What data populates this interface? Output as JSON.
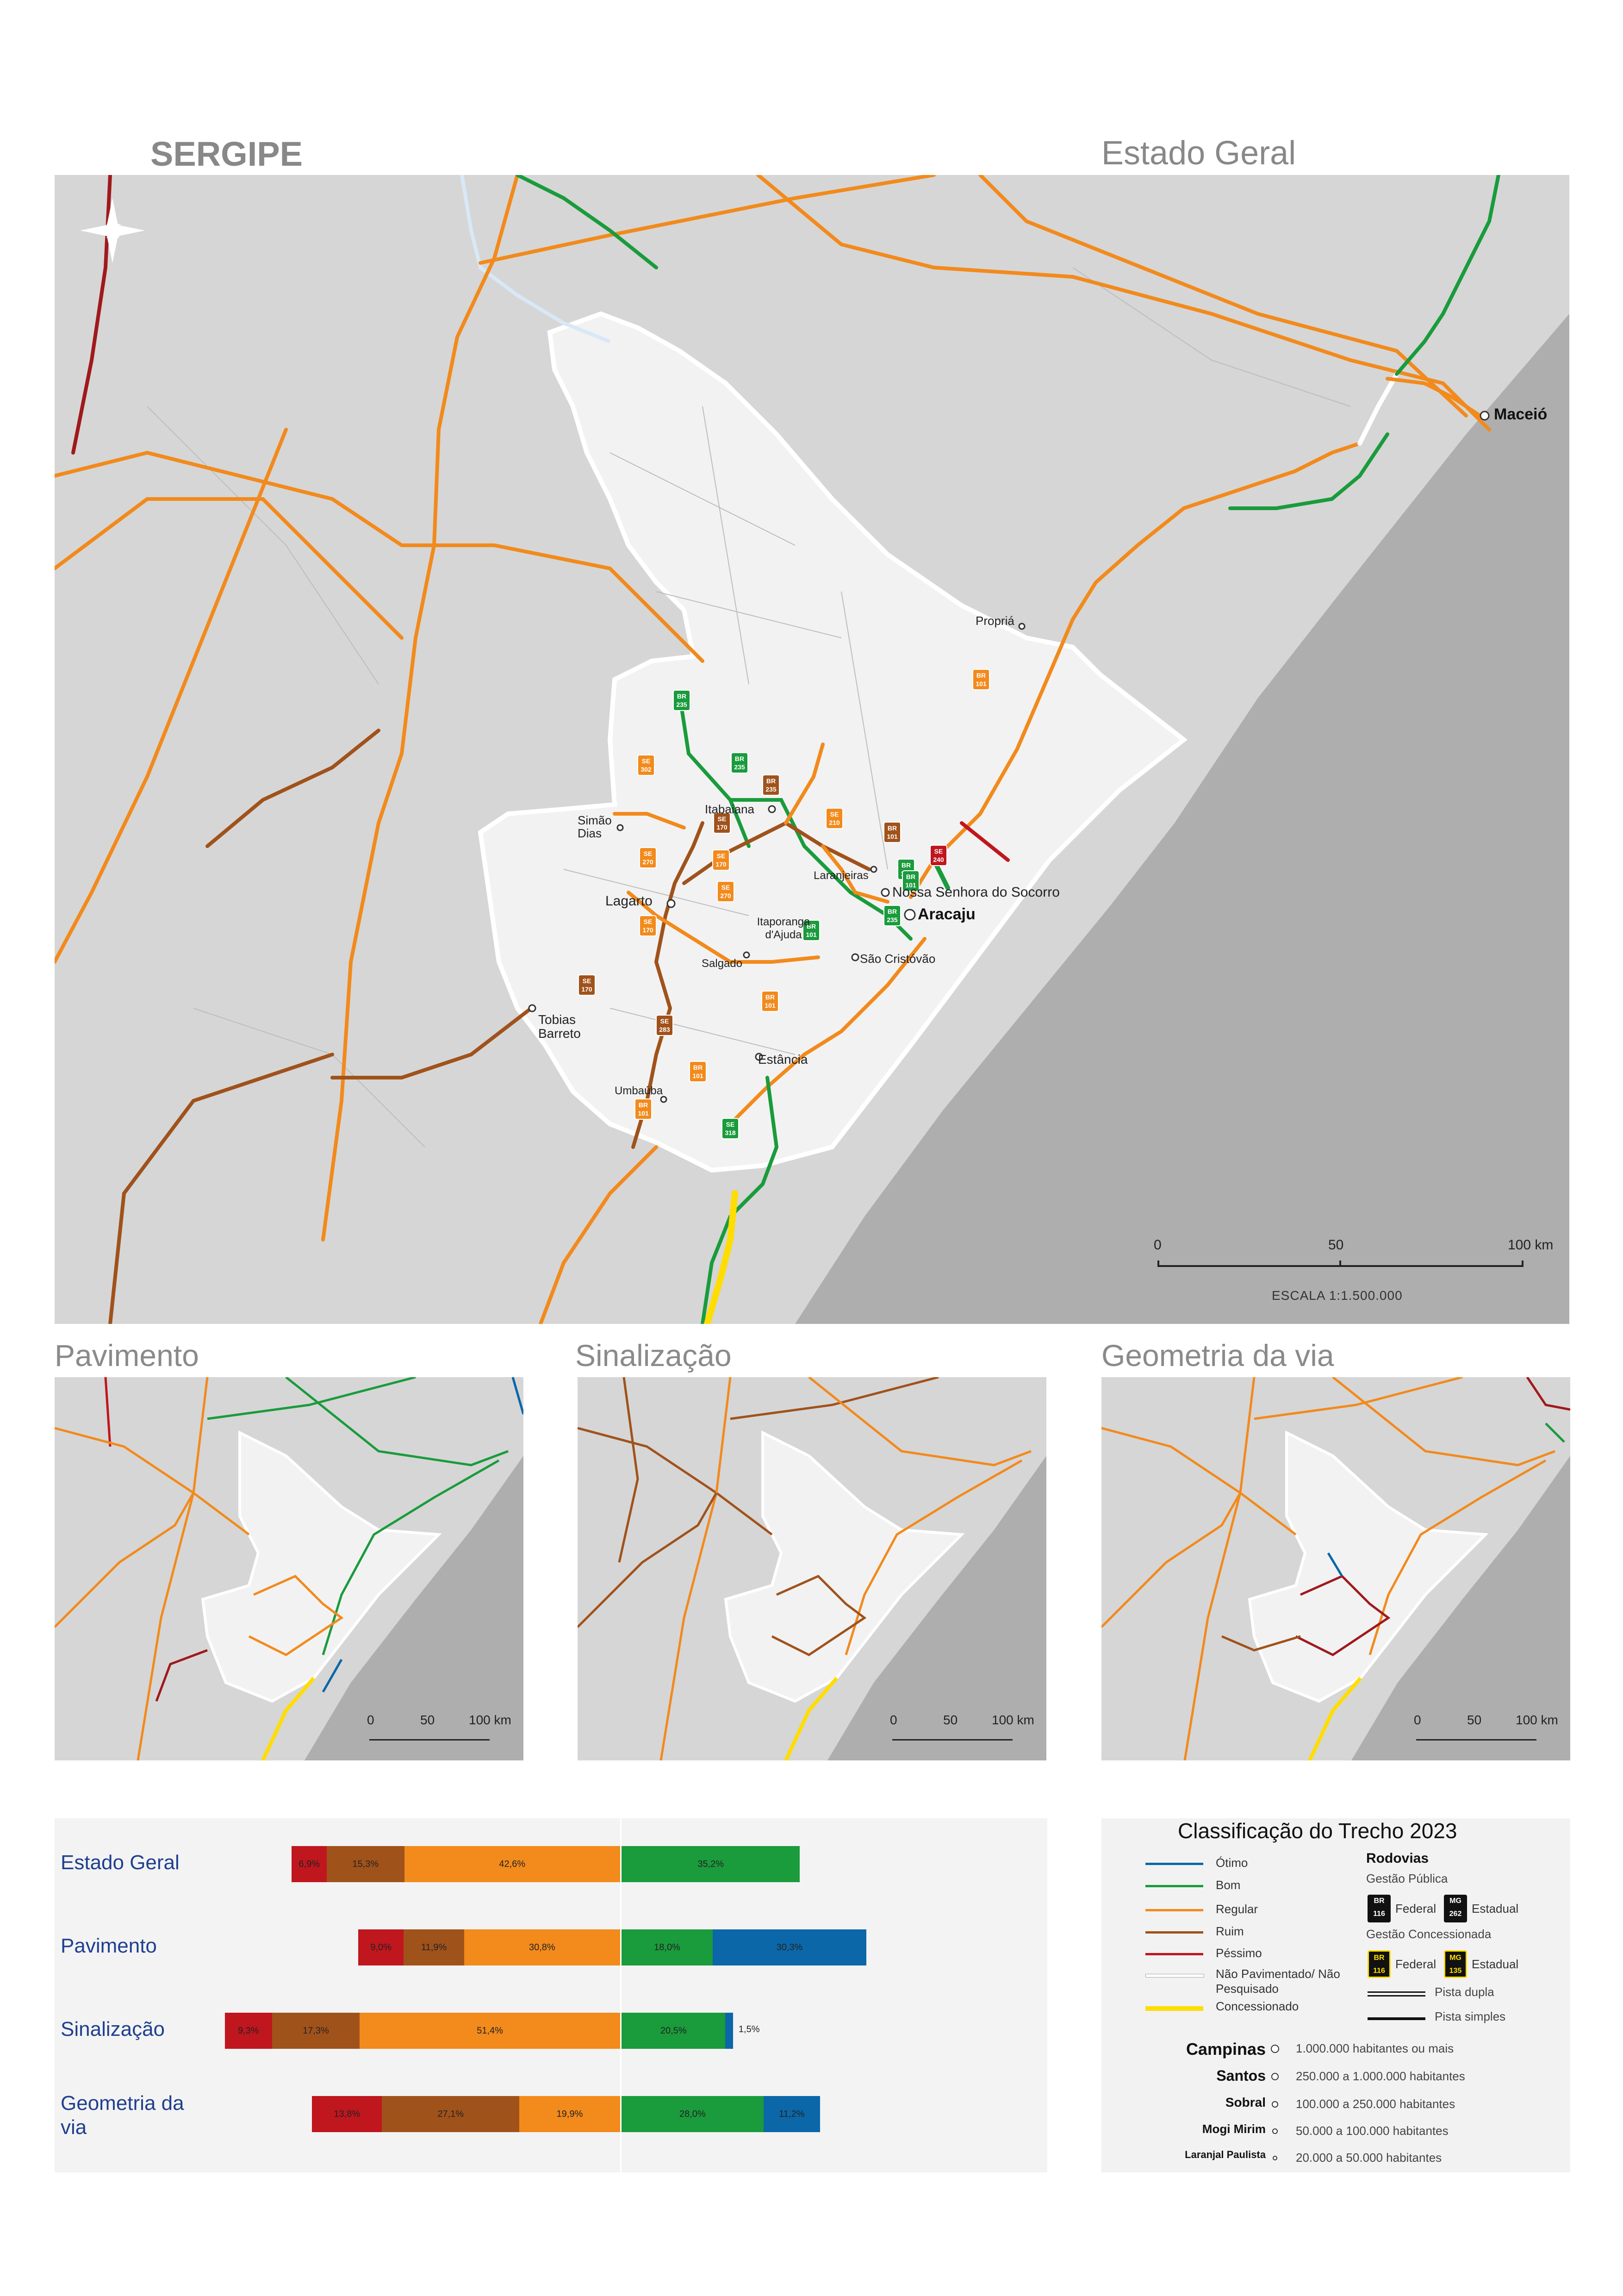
{
  "header": {
    "state": "SERGIPE",
    "main_title": "Estado Geral"
  },
  "main_map": {
    "places": {
      "maceio": "Maceió",
      "propria": "Propriá",
      "itabaiana": "Itabaiana",
      "simao_dias": "Simão Dias",
      "lagarto": "Lagarto",
      "laranjeiras": "Laranjeiras",
      "socorro": "Nossa Senhora do Socorro",
      "aracaju": "Aracaju",
      "itaporanga": "Itaporanga d'Ajuda",
      "salgado": "Salgado",
      "sao_cristovao": "São Cristóvão",
      "tobias_barreto": "Tobias Barreto",
      "estancia": "Estância",
      "umbauba": "Umbaúba"
    },
    "shields": [
      {
        "type": "BR",
        "num": "235",
        "color": "#1a9b3c"
      },
      {
        "type": "BR",
        "num": "235",
        "color": "#1a9b3c"
      },
      {
        "type": "SE",
        "num": "302",
        "color": "#f28a1c"
      },
      {
        "type": "SE",
        "num": "170",
        "color": "#f28a1c"
      },
      {
        "type": "SE",
        "num": "170",
        "color": "#a0521b"
      },
      {
        "type": "SE",
        "num": "210",
        "color": "#f28a1c"
      },
      {
        "type": "BR",
        "num": "235",
        "color": "#a0521b"
      },
      {
        "type": "BR",
        "num": "101",
        "color": "#a0521b"
      },
      {
        "type": "SE",
        "num": "240",
        "color": "#c0161e"
      },
      {
        "type": "BR",
        "num": "101",
        "color": "#f28a1c"
      },
      {
        "type": "SE",
        "num": "270",
        "color": "#f28a1c"
      },
      {
        "type": "SE",
        "num": "170",
        "color": "#f28a1c"
      },
      {
        "type": "SE",
        "num": "270",
        "color": "#f28a1c"
      },
      {
        "type": "BR",
        "num": "101",
        "color": "#1a9b3c"
      },
      {
        "type": "BR",
        "num": "101",
        "color": "#1a9b3c"
      },
      {
        "type": "BR",
        "num": "235",
        "color": "#1a9b3c"
      },
      {
        "type": "BR",
        "num": "101",
        "color": "#1a9b3c"
      },
      {
        "type": "SE",
        "num": "170",
        "color": "#a0521b"
      },
      {
        "type": "SE",
        "num": "283",
        "color": "#a0521b"
      },
      {
        "type": "BR",
        "num": "101",
        "color": "#f28a1c"
      },
      {
        "type": "BR",
        "num": "101",
        "color": "#f28a1c"
      },
      {
        "type": "BR",
        "num": "101",
        "color": "#f28a1c"
      },
      {
        "type": "SE",
        "num": "318",
        "color": "#1a9b3c"
      }
    ],
    "scale": {
      "t0": "0",
      "t1": "50",
      "t2": "100 km",
      "label": "ESCALA 1:1.500.000"
    }
  },
  "small_maps": [
    {
      "title": "Pavimento",
      "scale": {
        "t0": "0",
        "t1": "50",
        "t2": "100 km"
      }
    },
    {
      "title": "Sinalização",
      "scale": {
        "t0": "0",
        "t1": "50",
        "t2": "100 km"
      }
    },
    {
      "title": "Geometria da via",
      "scale": {
        "t0": "0",
        "t1": "50",
        "t2": "100 km"
      }
    }
  ],
  "chart_data": {
    "type": "bar",
    "orientation": "horizontal-diverging",
    "categories": [
      "Estado Geral",
      "Pavimento",
      "Sinalização",
      "Geometria da via"
    ],
    "series": [
      {
        "name": "Péssimo",
        "color": "#c0161e",
        "values": [
          6.9,
          9.0,
          9.3,
          13.8
        ]
      },
      {
        "name": "Ruim",
        "color": "#a0521b",
        "values": [
          15.3,
          11.9,
          17.3,
          27.1
        ]
      },
      {
        "name": "Regular",
        "color": "#f28a1c",
        "values": [
          42.6,
          30.8,
          51.4,
          19.9
        ]
      },
      {
        "name": "Bom",
        "color": "#1a9b3c",
        "values": [
          35.2,
          18.0,
          20.5,
          28.0
        ]
      },
      {
        "name": "Ótimo",
        "color": "#0b67a8",
        "values": [
          0.0,
          30.3,
          1.5,
          11.2
        ]
      }
    ],
    "labels": [
      [
        "6,9%",
        "15,3%",
        "42,6%",
        "35,2%",
        ""
      ],
      [
        "9,0%",
        "11,9%",
        "30,8%",
        "18,0%",
        "30,3%"
      ],
      [
        "9,3%",
        "17,3%",
        "51,4%",
        "20,5%",
        "1,5%"
      ],
      [
        "13,8%",
        "27,1%",
        "19,9%",
        "28,0%",
        "11,2%"
      ]
    ]
  },
  "legend": {
    "title": "Classificação do Trecho 2023",
    "classes": [
      {
        "label": "Ótimo",
        "color": "#0b67a8"
      },
      {
        "label": "Bom",
        "color": "#1a9b3c"
      },
      {
        "label": "Regular",
        "color": "#f28a1c"
      },
      {
        "label": "Ruim",
        "color": "#a0521b"
      },
      {
        "label": "Péssimo",
        "color": "#c0161e"
      },
      {
        "label": "Não Pavimentado/ Não Pesquisado",
        "color": "#cccccc"
      },
      {
        "label": "Concessionado",
        "color": "#ffdd00"
      }
    ],
    "rodovias": "Rodovias",
    "gestao_publica": "Gestão Pública",
    "gestao_concessionada": "Gestão Concessionada",
    "federal": "Federal",
    "estadual": "Estadual",
    "br_num": "116",
    "mg_num": "262",
    "mg_num2": "135",
    "br": "BR",
    "mg": "MG",
    "pista_dupla": "Pista dupla",
    "pista_simples": "Pista simples",
    "population": [
      {
        "name": "Campinas",
        "desc": "1.000.000 habitantes ou mais"
      },
      {
        "name": "Santos",
        "desc": "250.000 a 1.000.000 habitantes"
      },
      {
        "name": "Sobral",
        "desc": "100.000 a 250.000 habitantes"
      },
      {
        "name": "Mogi Mirim",
        "desc": "50.000 a 100.000 habitantes"
      },
      {
        "name": "Laranjal Paulista",
        "desc": "20.000 a 50.000 habitantes"
      }
    ]
  }
}
